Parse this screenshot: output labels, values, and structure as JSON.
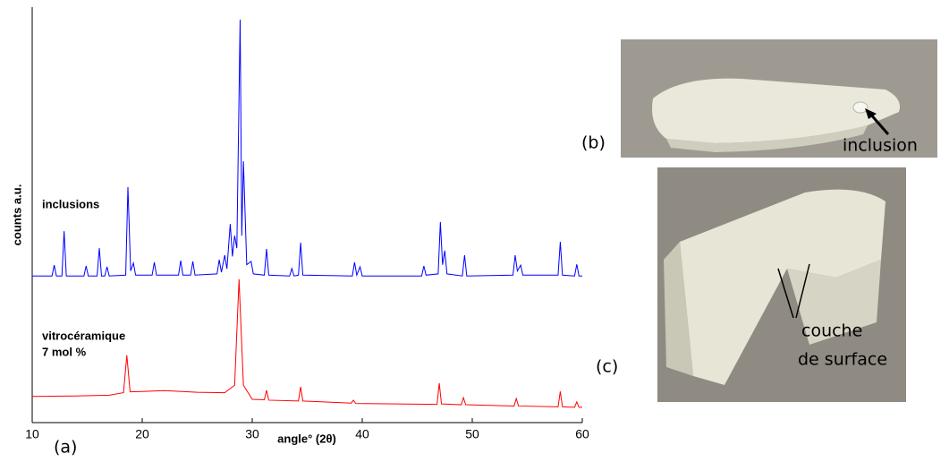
{
  "chart_data": {
    "type": "line",
    "xlabel": "angle° (2θ)",
    "ylabel": "counts a.u.",
    "xlim": [
      10,
      60
    ],
    "xticks": [
      10,
      20,
      30,
      40,
      50,
      60
    ],
    "ylim": [
      0,
      100
    ],
    "annotations": [
      "inclusions",
      "vitrocéramique",
      "7 mol %"
    ],
    "panel_labels": [
      "(a)",
      "(b)",
      "(c)"
    ],
    "photo_labels": [
      "inclusion",
      "couche",
      "de surface"
    ],
    "series": [
      {
        "color": "#0000ff",
        "x": [
          10,
          11.8,
          12.0,
          12.2,
          12.7,
          12.9,
          13.1,
          14.7,
          14.9,
          15.1,
          15.9,
          16.1,
          16.3,
          16.6,
          16.8,
          17.0,
          18.5,
          18.7,
          18.95,
          19.2,
          19.4,
          20.9,
          21.1,
          21.3,
          23.3,
          23.5,
          23.7,
          24.4,
          24.6,
          24.8,
          26.8,
          27.0,
          27.2,
          27.5,
          27.7,
          28.0,
          28.2,
          28.4,
          28.6,
          28.9,
          29.05,
          29.2,
          29.5,
          29.9,
          30.1,
          31.1,
          31.3,
          31.5,
          33.4,
          33.6,
          33.8,
          34.2,
          34.4,
          34.6,
          39.1,
          39.3,
          39.5,
          39.8,
          40.0,
          45.4,
          45.6,
          45.8,
          46.9,
          47.1,
          47.3,
          47.5,
          47.7,
          49.1,
          49.3,
          49.5,
          53.7,
          53.9,
          54.1,
          54.4,
          54.6,
          57.8,
          58.0,
          58.2,
          59.3,
          59.5,
          59.7,
          60
        ],
        "values": [
          35.3,
          35.3,
          37.9,
          35.3,
          35.3,
          46.1,
          35.3,
          35.3,
          37.7,
          35.3,
          35.3,
          42.0,
          35.3,
          35.3,
          37.5,
          35.3,
          35.5,
          56.7,
          36.5,
          38.4,
          35.5,
          35.5,
          38.6,
          35.5,
          35.5,
          39.0,
          35.5,
          35.5,
          38.8,
          35.5,
          35.8,
          39.2,
          36.2,
          40.3,
          37.0,
          47.8,
          40.0,
          45.0,
          42.0,
          97.0,
          45.0,
          62.9,
          38.0,
          38.8,
          35.8,
          35.5,
          41.8,
          35.5,
          35.3,
          37.1,
          35.3,
          35.5,
          43.3,
          35.5,
          35.3,
          38.6,
          35.5,
          37.5,
          35.3,
          35.3,
          37.7,
          35.5,
          35.8,
          48.3,
          38.0,
          41.4,
          35.8,
          35.3,
          40.3,
          35.3,
          35.5,
          40.3,
          36.5,
          37.9,
          35.5,
          35.5,
          43.5,
          35.5,
          35.3,
          38.1,
          35.3,
          35.3
        ]
      },
      {
        "color": "#ff0000",
        "x": [
          10,
          14,
          17,
          18.3,
          18.6,
          18.9,
          20,
          22,
          25,
          27.5,
          28.4,
          28.8,
          29.2,
          30,
          31.1,
          31.3,
          31.5,
          34.2,
          34.4,
          34.6,
          39.0,
          39.2,
          39.4,
          46.8,
          47.0,
          47.2,
          49.0,
          49.2,
          49.4,
          53.8,
          54.0,
          54.2,
          57.8,
          58.0,
          58.2,
          59.3,
          59.5,
          59.7,
          60
        ],
        "values": [
          6.3,
          6.4,
          6.6,
          7.2,
          16.2,
          7.4,
          7.5,
          7.7,
          7.3,
          7.2,
          9.0,
          34.5,
          9.0,
          5.6,
          5.5,
          7.8,
          5.4,
          5.2,
          8.6,
          5.2,
          4.7,
          5.4,
          4.6,
          4.4,
          9.5,
          4.5,
          4.3,
          6.0,
          4.3,
          4.0,
          5.8,
          4.0,
          3.8,
          7.5,
          3.8,
          3.7,
          5.0,
          3.7,
          3.7
        ]
      }
    ]
  }
}
